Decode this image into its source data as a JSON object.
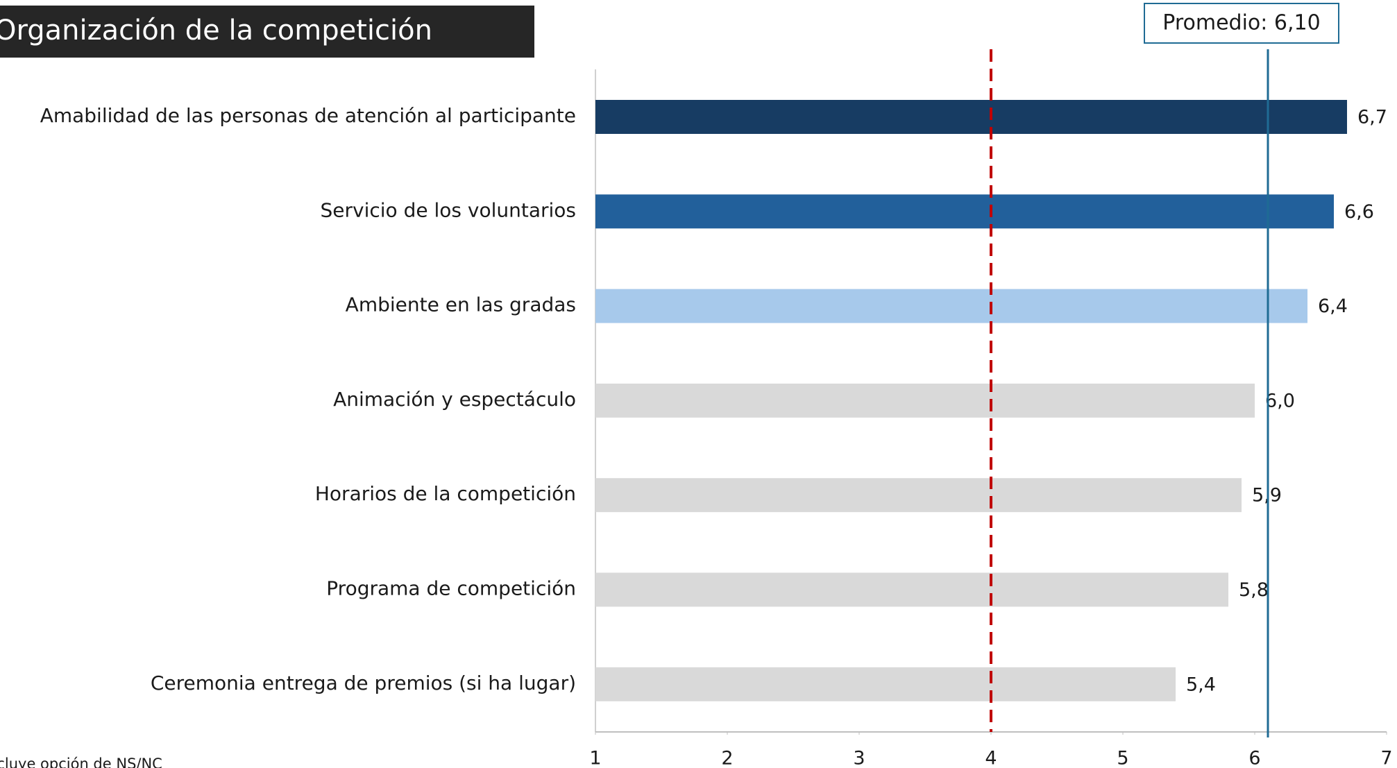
{
  "chart_data": {
    "type": "bar",
    "orientation": "horizontal",
    "title": "Organización de la competición",
    "footnote": "Excluye opción de NS/NC",
    "categories": [
      "Amabilidad de las personas de atención al  participante",
      "Servicio de los voluntarios",
      "Ambiente en las gradas",
      "Animación y espectáculo",
      "Horarios de la competición",
      "Programa de competición",
      "Ceremonia entrega de premios (si ha lugar)"
    ],
    "values": [
      6.7,
      6.6,
      6.4,
      6.0,
      5.9,
      5.8,
      5.4
    ],
    "value_labels": [
      "6,7",
      "6,6",
      "6,4",
      "6,0",
      "5,9",
      "5,8",
      "5,4"
    ],
    "colors": [
      "#173c63",
      "#22609b",
      "#a7c9eb",
      "#d9d9d9",
      "#d9d9d9",
      "#d9d9d9",
      "#d9d9d9"
    ],
    "xlim": [
      1,
      7
    ],
    "xticks": [
      1,
      2,
      3,
      4,
      5,
      6,
      7
    ],
    "reference_lines": [
      {
        "value": 4,
        "color": "#c00000",
        "style": "dashed"
      },
      {
        "value": 6.1,
        "label": "Promedio: 6,10",
        "color": "#1f6b94",
        "style": "solid"
      }
    ]
  }
}
